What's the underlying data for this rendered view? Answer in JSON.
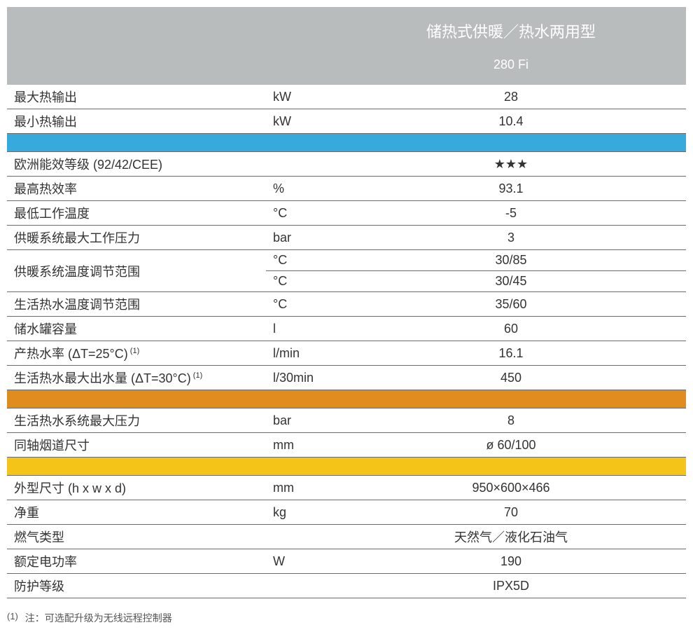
{
  "header": {
    "title": "储热式供暖／热水两用型",
    "model": "280 Fi"
  },
  "colors": {
    "header_bg": "#b9bcbc",
    "header_text": "#ffffff",
    "sep_blue": "#36a9dd",
    "sep_orange": "#e08c1e",
    "sep_yellow": "#f5c419",
    "rule": "#6a6a6a",
    "text": "#333333"
  },
  "sections": [
    {
      "rows": [
        {
          "label": "最大热输出",
          "unit": "kW",
          "value": "28"
        },
        {
          "label": "最小热输出",
          "unit": "kW",
          "value": "10.4"
        }
      ]
    },
    {
      "separator": "sep-blue",
      "rows": [
        {
          "label": "欧洲能效等级 (92/42/CEE)",
          "unit": "",
          "value": "★★★"
        },
        {
          "label": "最高热效率",
          "unit": "%",
          "value": "93.1"
        },
        {
          "label": "最低工作温度",
          "unit": "°C",
          "value": "-5"
        },
        {
          "label": "供暖系统最大工作压力",
          "unit": "bar",
          "value": "3"
        },
        {
          "label": "供暖系统温度调节范围",
          "rowspan": 2,
          "unit": "°C",
          "value": "30/85"
        },
        {
          "unit": "°C",
          "value": "30/45"
        },
        {
          "label": "生活热水温度调节范围",
          "unit": "°C",
          "value": "35/60"
        },
        {
          "label": "储水罐容量",
          "unit": "l",
          "value": "60"
        },
        {
          "label_html": "产热水率 (ΔT=25°C)<sup> (1)</sup>",
          "unit": "l/min",
          "value": "16.1"
        },
        {
          "label_html": "生活热水最大出水量 (ΔT=30°C)<sup> (1)</sup>",
          "unit": "l/30min",
          "value": "450"
        }
      ]
    },
    {
      "separator": "sep-orange",
      "rows": [
        {
          "label": "生活热水系统最大压力",
          "unit": "bar",
          "value": "8"
        },
        {
          "label": "同轴烟道尺寸",
          "unit": "mm",
          "value": "ø 60/100"
        }
      ]
    },
    {
      "separator": "sep-yellow",
      "rows": [
        {
          "label": "外型尺寸 (h x w x d)",
          "unit": "mm",
          "value": "950×600×466"
        },
        {
          "label": "净重",
          "unit": "kg",
          "value": "70"
        },
        {
          "label": "燃气类型",
          "unit": "",
          "value": "天然气／液化石油气"
        },
        {
          "label": "额定电功率",
          "unit": "W",
          "value": "190"
        },
        {
          "label": "防护等级",
          "unit": "",
          "value": "IPX5D"
        }
      ]
    }
  ],
  "footnote": {
    "marker": "(1)",
    "text": "注：可选配升级为无线远程控制器"
  }
}
